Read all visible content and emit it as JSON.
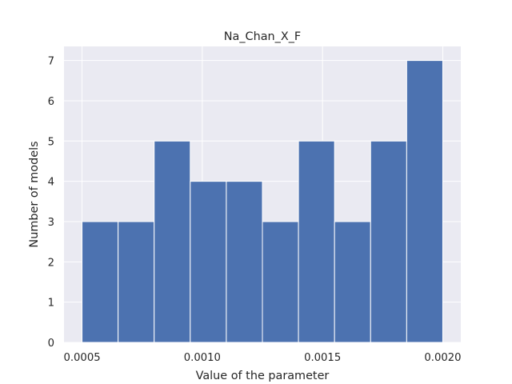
{
  "chart_data": {
    "type": "bar",
    "title": "Na_Chan_X_F",
    "xlabel": "Value of the parameter",
    "ylabel": "Number of models",
    "bins": [
      {
        "start": 0.0005,
        "end": 0.00065,
        "count": 3
      },
      {
        "start": 0.00065,
        "end": 0.0008,
        "count": 3
      },
      {
        "start": 0.0008,
        "end": 0.00095,
        "count": 5
      },
      {
        "start": 0.00095,
        "end": 0.0011,
        "count": 4
      },
      {
        "start": 0.0011,
        "end": 0.00125,
        "count": 4
      },
      {
        "start": 0.00125,
        "end": 0.0014,
        "count": 3
      },
      {
        "start": 0.0014,
        "end": 0.00155,
        "count": 5
      },
      {
        "start": 0.00155,
        "end": 0.0017,
        "count": 3
      },
      {
        "start": 0.0017,
        "end": 0.00185,
        "count": 5
      },
      {
        "start": 0.00185,
        "end": 0.002,
        "count": 7
      }
    ],
    "xlim": [
      0.000425,
      0.002075
    ],
    "ylim": [
      0,
      7.35
    ],
    "xticks": [
      0.0005,
      0.001,
      0.0015,
      0.002
    ],
    "xtick_labels": [
      "0.0005",
      "0.0010",
      "0.0015",
      "0.0020"
    ],
    "yticks": [
      0,
      1,
      2,
      3,
      4,
      5,
      6,
      7
    ],
    "ytick_labels": [
      "0",
      "1",
      "2",
      "3",
      "4",
      "5",
      "6",
      "7"
    ],
    "grid": true,
    "colors": {
      "bar": "#4c72b0",
      "bar_edge": "#ffffff",
      "plot_background": "#eaeaf2",
      "grid": "#ffffff",
      "text": "#262626"
    }
  }
}
